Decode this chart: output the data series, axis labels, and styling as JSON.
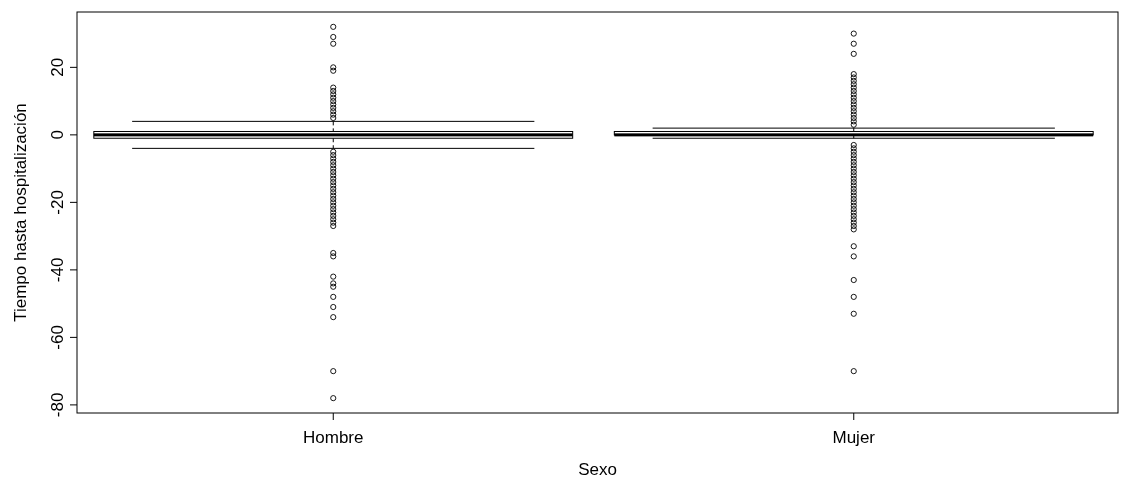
{
  "chart_data": {
    "type": "box",
    "xlabel": "Sexo",
    "ylabel": "Tiempo hasta hospitalización",
    "categories": [
      "Hombre",
      "Mujer"
    ],
    "ylim": [
      -82.4,
      36.4
    ],
    "yticks": [
      -80,
      -60,
      -40,
      -20,
      0,
      20
    ],
    "color": "#000000",
    "boxes": [
      {
        "low": -4,
        "q1": -1,
        "median": 0,
        "q3": 1,
        "high": 4,
        "outliers": [
          32,
          29,
          27,
          20,
          19,
          14,
          13,
          12,
          11,
          10,
          9,
          8,
          7,
          6,
          5,
          -5,
          -6,
          -7,
          -8,
          -9,
          -10,
          -11,
          -12,
          -13,
          -14,
          -15,
          -16,
          -17,
          -18,
          -19,
          -20,
          -21,
          -22,
          -23,
          -24,
          -25,
          -26,
          -27,
          -35,
          -36,
          -42,
          -44,
          -45,
          -48,
          -51,
          -54,
          -70,
          -78
        ]
      },
      {
        "low": -1,
        "q1": 0,
        "median": 0,
        "q3": 1,
        "high": 2,
        "outliers": [
          30,
          27,
          24,
          18,
          17,
          16,
          15,
          14,
          13,
          12,
          11,
          10,
          9,
          8,
          7,
          6,
          5,
          4,
          3,
          -3,
          -4,
          -5,
          -6,
          -7,
          -8,
          -9,
          -10,
          -11,
          -12,
          -13,
          -14,
          -15,
          -16,
          -17,
          -18,
          -19,
          -20,
          -21,
          -22,
          -23,
          -24,
          -25,
          -26,
          -27,
          -28,
          -33,
          -36,
          -43,
          -48,
          -53,
          -70
        ]
      }
    ]
  }
}
